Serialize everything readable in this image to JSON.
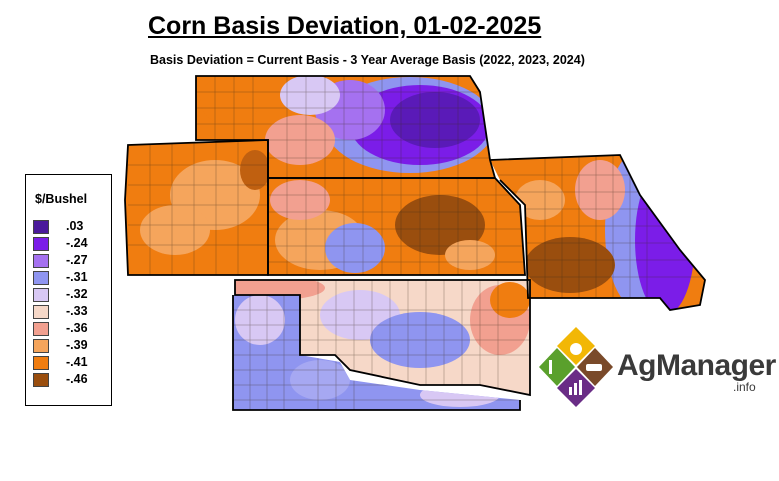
{
  "title": "Corn Basis Deviation, 01-02-2025",
  "subtitle": "Basis Deviation = Current Basis - 3 Year Average Basis (2022, 2023, 2024)",
  "legend": {
    "title": "$/Bushel",
    "items": [
      {
        "label": ".03",
        "color": "#4b1a9b"
      },
      {
        "label": "-.24",
        "color": "#7b1de8"
      },
      {
        "label": "-.27",
        "color": "#a571f0"
      },
      {
        "label": "-.31",
        "color": "#8f95f0"
      },
      {
        "label": "-.32",
        "color": "#d8c8f4"
      },
      {
        "label": "-.33",
        "color": "#f6d8c8"
      },
      {
        "label": "-.36",
        "color": "#f2a090"
      },
      {
        "label": "-.39",
        "color": "#f5a55c"
      },
      {
        "label": "-.41",
        "color": "#f07d10"
      },
      {
        "label": "-.46",
        "color": "#9a4e0e"
      }
    ]
  },
  "logo": {
    "name": "AgManager",
    "suffix": ".info"
  }
}
